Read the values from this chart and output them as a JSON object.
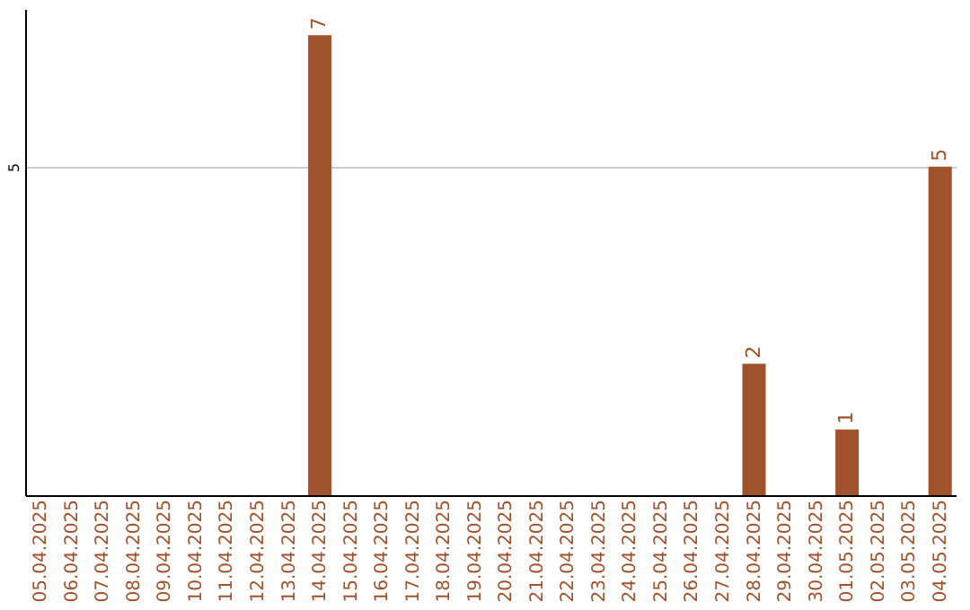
{
  "chart_data": {
    "type": "bar",
    "categories": [
      "05.04.2025",
      "06.04.2025",
      "07.04.2025",
      "08.04.2025",
      "09.04.2025",
      "10.04.2025",
      "11.04.2025",
      "12.04.2025",
      "13.04.2025",
      "14.04.2025",
      "15.04.2025",
      "16.04.2025",
      "17.04.2025",
      "18.04.2025",
      "19.04.2025",
      "20.04.2025",
      "21.04.2025",
      "22.04.2025",
      "23.04.2025",
      "24.04.2025",
      "25.04.2025",
      "26.04.2025",
      "27.04.2025",
      "28.04.2025",
      "29.04.2025",
      "30.04.2025",
      "01.05.2025",
      "02.05.2025",
      "03.05.2025",
      "04.05.2025"
    ],
    "values": [
      0,
      0,
      0,
      0,
      0,
      0,
      0,
      0,
      0,
      7,
      0,
      0,
      0,
      0,
      0,
      0,
      0,
      0,
      0,
      0,
      0,
      0,
      0,
      2,
      0,
      0,
      1,
      0,
      0,
      5
    ],
    "value_labels": [
      null,
      null,
      null,
      null,
      null,
      null,
      null,
      null,
      null,
      "7",
      null,
      null,
      null,
      null,
      null,
      null,
      null,
      null,
      null,
      null,
      null,
      null,
      null,
      "2",
      null,
      null,
      "1",
      null,
      null,
      "5"
    ],
    "color": "#a0522d",
    "ylim": [
      0,
      7.4
    ],
    "yticks": [
      5
    ],
    "grid": "y"
  }
}
